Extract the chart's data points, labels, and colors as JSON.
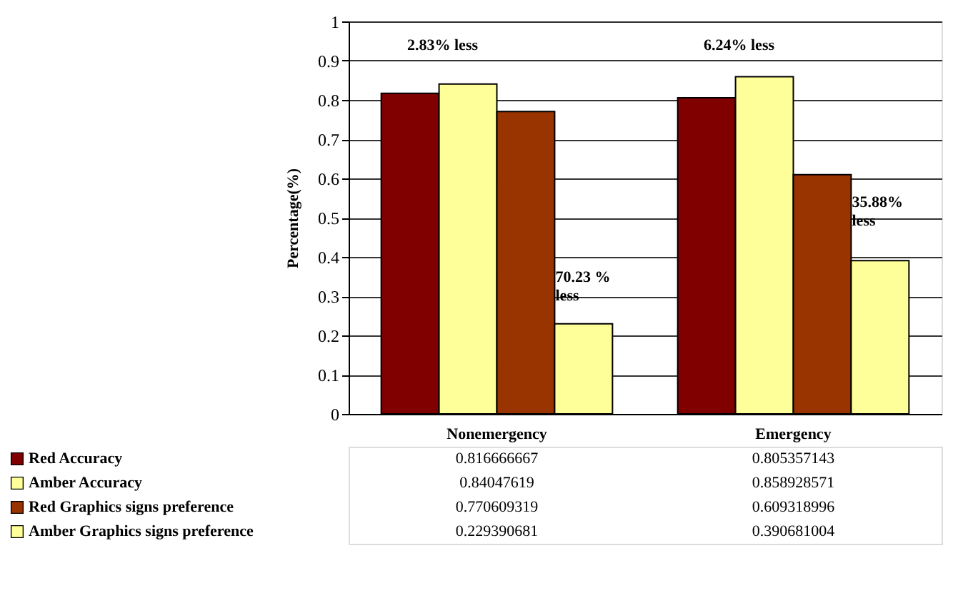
{
  "chart_data": {
    "type": "bar",
    "ylabel": "Percentage(%)",
    "categories": [
      "Nonemergency",
      "Emergency"
    ],
    "series": [
      {
        "name": "Red Accuracy",
        "color": "#800000",
        "values": [
          0.816666667,
          0.805357143
        ]
      },
      {
        "name": "Amber Accuracy",
        "color": "#ffff99",
        "values": [
          0.84047619,
          0.858928571
        ]
      },
      {
        "name": "Red Graphics signs preference",
        "color": "#993300",
        "values": [
          0.770609319,
          0.609318996
        ]
      },
      {
        "name": "Amber Graphics signs preference",
        "color": "#ffff99",
        "values": [
          0.229390681,
          0.390681004
        ]
      }
    ],
    "ylim": [
      0,
      1
    ],
    "yticks": [
      0,
      0.1,
      0.2,
      0.3,
      0.4,
      0.5,
      0.6,
      0.7,
      0.8,
      0.9,
      1
    ],
    "grid": "y",
    "data_labels": true,
    "legend": "bottom",
    "annotations": [
      "2.83% less",
      "6.24% less",
      "70.23 % less",
      "35.88% less"
    ]
  }
}
